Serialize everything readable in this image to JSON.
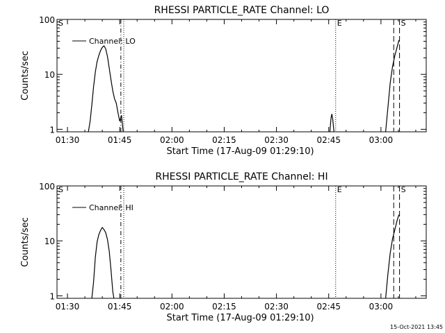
{
  "footer": {
    "timestamp": "15-Oct-2021 13:45"
  },
  "chart_data": [
    {
      "type": "line",
      "title": "RHESSI PARTICLE_RATE Channel: LO",
      "xlabel": "Start Time (17-Aug-09 01:29:10)",
      "ylabel": "Counts/sec",
      "y_scale": "log",
      "ylim": [
        0.9,
        100
      ],
      "xlim": [
        "01:27:00",
        "03:13:00"
      ],
      "x_ticks": [
        "01:30",
        "01:45",
        "02:00",
        "02:15",
        "02:30",
        "02:45",
        "03:00"
      ],
      "y_ticks": [
        "1",
        "10",
        "100"
      ],
      "grid": false,
      "legend_position": "top-left",
      "series": [
        {
          "name": "Channel: LO",
          "points": [
            [
              "01:36:00",
              0.9
            ],
            [
              "01:36:30",
              1.4
            ],
            [
              "01:37:00",
              2.8
            ],
            [
              "01:37:30",
              6.0
            ],
            [
              "01:38:00",
              11.0
            ],
            [
              "01:38:30",
              17.0
            ],
            [
              "01:39:00",
              22.0
            ],
            [
              "01:39:30",
              27.0
            ],
            [
              "01:40:00",
              31.0
            ],
            [
              "01:40:30",
              33.0
            ],
            [
              "01:41:00",
              29.0
            ],
            [
              "01:41:30",
              21.0
            ],
            [
              "01:42:00",
              13.0
            ],
            [
              "01:42:30",
              8.0
            ],
            [
              "01:43:00",
              5.0
            ],
            [
              "01:43:30",
              3.6
            ],
            [
              "01:44:00",
              3.0
            ],
            [
              "01:44:30",
              2.0
            ],
            [
              "01:45:00",
              1.4
            ],
            [
              "01:45:30",
              1.8
            ],
            [
              "01:46:00",
              0.9
            ]
          ]
        },
        {
          "name": "Channel: LO",
          "points": [
            [
              "02:45:20",
              0.9
            ],
            [
              "02:45:40",
              1.6
            ],
            [
              "02:45:55",
              1.9
            ],
            [
              "02:46:10",
              1.5
            ],
            [
              "02:46:30",
              0.9
            ]
          ]
        },
        {
          "name": "Channel: LO",
          "points": [
            [
              "03:01:20",
              0.9
            ],
            [
              "03:02:00",
              2.5
            ],
            [
              "03:02:40",
              7.0
            ],
            [
              "03:03:20",
              14.0
            ],
            [
              "03:04:00",
              22.0
            ],
            [
              "03:04:40",
              32.0
            ],
            [
              "03:05:10",
              42.0
            ]
          ]
        }
      ],
      "markers": [
        {
          "label": "S",
          "time": "01:27:00",
          "style": "solid"
        },
        {
          "label": "",
          "time": "01:45:20",
          "style": "dashdot"
        },
        {
          "label": "",
          "time": "01:46:10",
          "style": "dotted"
        },
        {
          "label": "E",
          "time": "02:47:00",
          "style": "dotted"
        },
        {
          "label": "",
          "time": "03:03:40",
          "style": "dashed"
        },
        {
          "label": "S",
          "time": "03:05:20",
          "style": "dashed"
        }
      ]
    },
    {
      "type": "line",
      "title": "RHESSI PARTICLE_RATE Channel: HI",
      "xlabel": "Start Time (17-Aug-09 01:29:10)",
      "ylabel": "Counts/sec",
      "y_scale": "log",
      "ylim": [
        0.9,
        100
      ],
      "xlim": [
        "01:27:00",
        "03:13:00"
      ],
      "x_ticks": [
        "01:30",
        "01:45",
        "02:00",
        "02:15",
        "02:30",
        "02:45",
        "03:00"
      ],
      "y_ticks": [
        "1",
        "10",
        "100"
      ],
      "grid": false,
      "legend_position": "top-left",
      "series": [
        {
          "name": "Channel: HI",
          "points": [
            [
              "01:37:00",
              0.9
            ],
            [
              "01:37:30",
              1.8
            ],
            [
              "01:38:00",
              5.0
            ],
            [
              "01:38:30",
              9.5
            ],
            [
              "01:39:00",
              13.0
            ],
            [
              "01:39:30",
              15.5
            ],
            [
              "01:40:00",
              17.5
            ],
            [
              "01:40:30",
              16.0
            ],
            [
              "01:41:00",
              14.0
            ],
            [
              "01:41:30",
              10.5
            ],
            [
              "01:42:00",
              6.5
            ],
            [
              "01:42:30",
              3.0
            ],
            [
              "01:43:00",
              1.2
            ],
            [
              "01:43:20",
              0.9
            ]
          ]
        },
        {
          "name": "Channel: HI",
          "points": [
            [
              "03:01:20",
              0.9
            ],
            [
              "03:02:00",
              2.5
            ],
            [
              "03:02:40",
              6.0
            ],
            [
              "03:03:20",
              11.0
            ],
            [
              "03:04:00",
              16.0
            ],
            [
              "03:04:40",
              24.0
            ],
            [
              "03:05:10",
              30.0
            ]
          ]
        }
      ],
      "markers": [
        {
          "label": "S",
          "time": "01:27:00",
          "style": "solid"
        },
        {
          "label": "",
          "time": "01:45:20",
          "style": "dashdot"
        },
        {
          "label": "",
          "time": "01:46:10",
          "style": "dotted"
        },
        {
          "label": "E",
          "time": "02:47:00",
          "style": "dotted"
        },
        {
          "label": "",
          "time": "03:03:40",
          "style": "dashed"
        },
        {
          "label": "S",
          "time": "03:05:20",
          "style": "dashed"
        }
      ]
    }
  ]
}
